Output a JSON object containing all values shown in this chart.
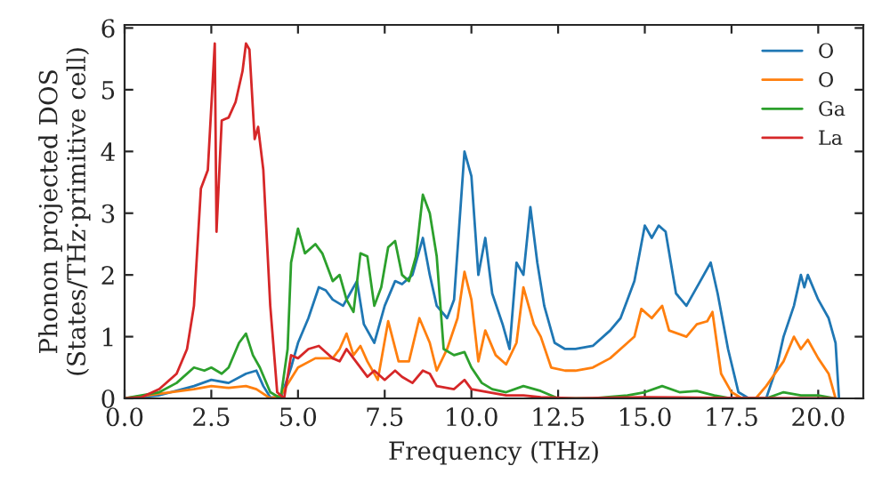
{
  "chart_data": {
    "type": "line",
    "xlabel": "Frequency (THz)",
    "ylabel": "Phonon projected DOS\n(States/THz·primitive cell)",
    "xlim": [
      0,
      21.3
    ],
    "ylim": [
      0,
      6.05
    ],
    "xticks": [
      {
        "value": 0,
        "label": "0.0"
      },
      {
        "value": 2.5,
        "label": "2.5"
      },
      {
        "value": 5,
        "label": "5.0"
      },
      {
        "value": 7.5,
        "label": "7.5"
      },
      {
        "value": 10,
        "label": "10.0"
      },
      {
        "value": 12.5,
        "label": "12.5"
      },
      {
        "value": 15,
        "label": "15.0"
      },
      {
        "value": 17.5,
        "label": "17.5"
      },
      {
        "value": 20,
        "label": "20.0"
      }
    ],
    "yticks": [
      0,
      1,
      2,
      3,
      4,
      5,
      6
    ],
    "grid": false,
    "legend": "top right",
    "series": [
      {
        "name": "O",
        "color": "#1f77b4",
        "x": [
          0,
          1,
          2,
          2.5,
          3,
          3.5,
          3.8,
          4.0,
          4.2,
          4.5,
          4.8,
          5.0,
          5.3,
          5.6,
          5.8,
          6.0,
          6.3,
          6.5,
          6.7,
          6.9,
          7.2,
          7.5,
          7.8,
          8.0,
          8.3,
          8.6,
          8.8,
          9.0,
          9.3,
          9.5,
          9.8,
          10.0,
          10.2,
          10.4,
          10.6,
          10.9,
          11.1,
          11.3,
          11.5,
          11.7,
          11.9,
          12.1,
          12.4,
          12.7,
          13.0,
          13.5,
          14.0,
          14.3,
          14.5,
          14.7,
          15.0,
          15.2,
          15.4,
          15.6,
          15.9,
          16.2,
          16.6,
          16.9,
          17.1,
          17.4,
          17.7,
          18.0,
          18.5,
          18.8,
          19.0,
          19.3,
          19.5,
          19.6,
          19.7,
          20.0,
          20.3,
          20.5,
          20.6
        ],
        "values": [
          0,
          0.05,
          0.2,
          0.3,
          0.25,
          0.4,
          0.45,
          0.2,
          0.02,
          0.0,
          0.5,
          0.9,
          1.3,
          1.8,
          1.75,
          1.6,
          1.5,
          1.7,
          1.9,
          1.2,
          0.9,
          1.5,
          1.9,
          1.85,
          2.0,
          2.6,
          2.0,
          1.5,
          1.3,
          1.6,
          4.0,
          3.6,
          2.0,
          2.6,
          1.7,
          1.2,
          0.8,
          2.2,
          2.0,
          3.1,
          2.2,
          1.5,
          0.9,
          0.8,
          0.8,
          0.85,
          1.1,
          1.3,
          1.6,
          1.9,
          2.8,
          2.6,
          2.8,
          2.7,
          1.7,
          1.5,
          1.9,
          2.2,
          1.7,
          0.8,
          0.1,
          0,
          0,
          0.5,
          1.0,
          1.5,
          2.0,
          1.8,
          2.0,
          1.6,
          1.3,
          0.9,
          0
        ]
      },
      {
        "name": "O",
        "color": "#ff7f0e",
        "x": [
          0,
          2,
          2.5,
          3.0,
          3.5,
          3.8,
          4.2,
          4.5,
          5.0,
          5.5,
          6.0,
          6.2,
          6.4,
          6.6,
          6.8,
          7.0,
          7.3,
          7.6,
          7.9,
          8.2,
          8.5,
          8.8,
          9.0,
          9.3,
          9.6,
          9.8,
          10.0,
          10.2,
          10.4,
          10.7,
          11.0,
          11.3,
          11.5,
          11.8,
          12.0,
          12.3,
          12.7,
          13.0,
          13.5,
          14.0,
          14.5,
          14.7,
          14.9,
          15.2,
          15.5,
          15.7,
          16.2,
          16.5,
          16.8,
          16.95,
          17.2,
          17.5,
          17.8,
          18.2,
          18.5,
          19.0,
          19.3,
          19.5,
          19.7,
          20.0,
          20.3,
          20.5
        ],
        "values": [
          0,
          0.15,
          0.2,
          0.17,
          0.2,
          0.15,
          0.0,
          0.05,
          0.5,
          0.65,
          0.65,
          0.8,
          1.05,
          0.7,
          0.85,
          0.6,
          0.3,
          1.25,
          0.6,
          0.6,
          1.3,
          0.9,
          0.45,
          0.8,
          1.3,
          2.05,
          1.6,
          0.6,
          1.1,
          0.7,
          0.55,
          0.9,
          1.8,
          1.2,
          1.0,
          0.5,
          0.45,
          0.45,
          0.5,
          0.65,
          0.9,
          1.0,
          1.45,
          1.3,
          1.5,
          1.1,
          1.0,
          1.2,
          1.25,
          1.4,
          0.4,
          0.1,
          0,
          0,
          0.2,
          0.6,
          1.0,
          0.8,
          0.95,
          0.65,
          0.4,
          0.0
        ]
      },
      {
        "name": "Ga",
        "color": "#2ca02c",
        "x": [
          0,
          1.0,
          1.5,
          2.0,
          2.3,
          2.5,
          2.8,
          3.0,
          3.3,
          3.5,
          3.7,
          3.9,
          4.2,
          4.5,
          4.7,
          4.8,
          5.0,
          5.2,
          5.5,
          5.7,
          6.0,
          6.2,
          6.4,
          6.6,
          6.8,
          7.0,
          7.2,
          7.4,
          7.6,
          7.8,
          8.0,
          8.2,
          8.4,
          8.6,
          8.8,
          9.0,
          9.2,
          9.5,
          9.8,
          10.0,
          10.3,
          10.6,
          11.0,
          11.5,
          12.0,
          12.5,
          13.5,
          14.5,
          15.0,
          15.5,
          16.0,
          16.5,
          17.0,
          17.5,
          18.5,
          19.0,
          19.5,
          20.0,
          20.5
        ],
        "values": [
          0,
          0.1,
          0.25,
          0.5,
          0.45,
          0.5,
          0.4,
          0.5,
          0.9,
          1.05,
          0.7,
          0.5,
          0.1,
          0.0,
          0.8,
          2.2,
          2.75,
          2.35,
          2.5,
          2.35,
          1.9,
          2.0,
          1.6,
          1.4,
          2.35,
          2.3,
          1.5,
          1.8,
          2.45,
          2.55,
          2.0,
          1.9,
          2.3,
          3.3,
          3.0,
          2.3,
          0.8,
          0.7,
          0.75,
          0.5,
          0.25,
          0.15,
          0.1,
          0.2,
          0.12,
          0.0,
          0.0,
          0.05,
          0.1,
          0.2,
          0.1,
          0.12,
          0.05,
          0,
          0,
          0.1,
          0.05,
          0.05,
          0
        ]
      },
      {
        "name": "La",
        "color": "#d62728",
        "x": [
          0,
          0.5,
          1.0,
          1.5,
          1.8,
          2.0,
          2.2,
          2.4,
          2.6,
          2.65,
          2.8,
          3.0,
          3.2,
          3.4,
          3.5,
          3.6,
          3.75,
          3.85,
          4.0,
          4.2,
          4.4,
          4.6,
          4.8,
          5.0,
          5.3,
          5.6,
          5.8,
          6.0,
          6.2,
          6.4,
          6.6,
          7.0,
          7.2,
          7.5,
          7.8,
          8.0,
          8.3,
          8.6,
          8.8,
          9.0,
          9.5,
          9.8,
          10.0,
          10.5,
          11.0,
          11.5,
          12.0,
          13.0,
          15.0,
          17.0,
          20.5
        ],
        "values": [
          0,
          0.02,
          0.15,
          0.4,
          0.8,
          1.5,
          3.4,
          3.7,
          5.75,
          2.7,
          4.5,
          4.55,
          4.8,
          5.3,
          5.75,
          5.65,
          4.2,
          4.4,
          3.7,
          1.5,
          0.1,
          0.0,
          0.7,
          0.65,
          0.8,
          0.85,
          0.75,
          0.65,
          0.6,
          0.8,
          0.65,
          0.35,
          0.45,
          0.3,
          0.45,
          0.35,
          0.25,
          0.45,
          0.4,
          0.2,
          0.15,
          0.3,
          0.15,
          0.1,
          0.05,
          0.05,
          0.02,
          0,
          0.02,
          0.01,
          0
        ]
      }
    ]
  }
}
